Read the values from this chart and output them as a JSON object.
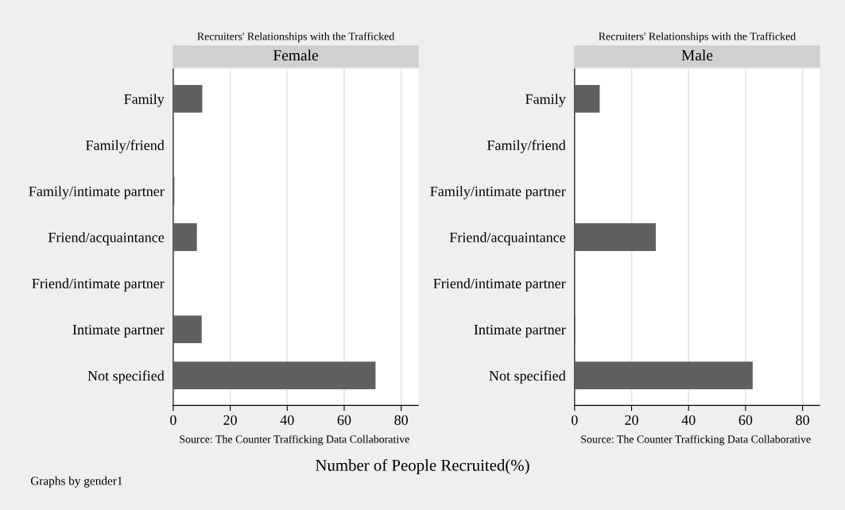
{
  "chart_data": [
    {
      "type": "bar",
      "orientation": "horizontal",
      "title": "Recruiters' Relationships with the Trafficked",
      "subtitle": "Female",
      "xlabel": "Number of People Recruited(%)",
      "categories": [
        "Family",
        "Family/friend",
        "Family/intimate partner",
        "Friend/acquaintance",
        "Friend/intimate partner",
        "Intimate partner",
        "Not specified"
      ],
      "values": [
        10.2,
        0,
        0.4,
        8.3,
        0,
        10.0,
        71.0
      ],
      "color": "#606060",
      "xlim": [
        0,
        86
      ],
      "xticks": [
        0,
        20,
        40,
        60,
        80
      ],
      "grid": "x",
      "legend": false,
      "annotations": [
        "Source: The Counter Trafficking Data Collaborative",
        "Graphs by gender1"
      ]
    },
    {
      "type": "bar",
      "orientation": "horizontal",
      "title": "Recruiters' Relationships with the Trafficked",
      "subtitle": "Male",
      "categories": [
        "Family",
        "Family/friend",
        "Family/intimate partner",
        "Friend/acquaintance",
        "Friend/intimate partner",
        "Intimate partner",
        "Not specified"
      ],
      "values": [
        8.8,
        0,
        0,
        28.5,
        0,
        0.2,
        62.5
      ],
      "color": "#606060",
      "xlim": [
        0,
        86
      ],
      "xticks": [
        0,
        20,
        40,
        60,
        80
      ],
      "grid": "x",
      "legend": false,
      "annotations": [
        "Source: The Counter Trafficking Data Collaborative"
      ]
    }
  ]
}
